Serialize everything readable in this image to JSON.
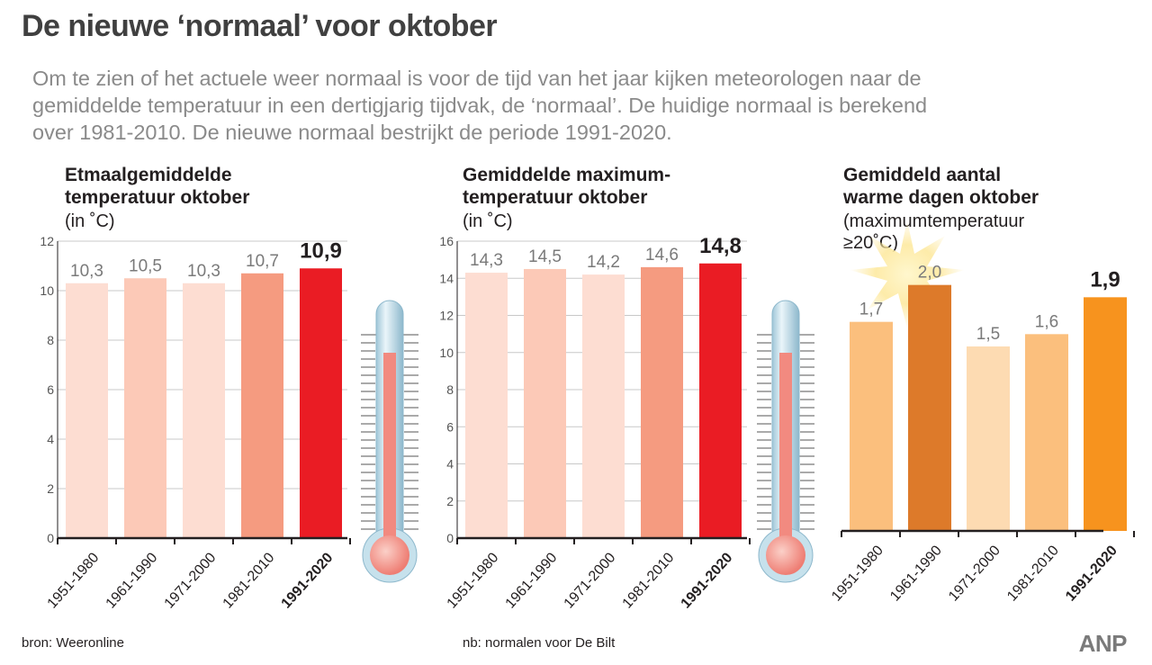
{
  "title": "De nieuwe ‘normaal’ voor oktober",
  "intro": {
    "line1": "Om te zien of het actuele weer normaal is voor de tijd van het jaar kijken meteorologen naar de",
    "line2": "gemiddelde temperatuur in een dertigjarig tijdvak, de ‘normaal’. De huidige normaal is berekend",
    "line3": "over 1981-2010. De nieuwe normaal bestrijkt de periode 1991-2020."
  },
  "chart_data": [
    {
      "type": "bar",
      "title_line1": "Etmaalgemiddelde",
      "title_line2": "temperatuur oktober",
      "unit": "(in ˚C)",
      "categories": [
        "1951-1980",
        "1961-1990",
        "1971-2000",
        "1981-2010",
        "1991-2020"
      ],
      "values": [
        10.3,
        10.5,
        10.3,
        10.7,
        10.9
      ],
      "value_labels": [
        "10,3",
        "10,5",
        "10,3",
        "10,7",
        "10,9"
      ],
      "highlight_index": 4,
      "colors": [
        "#fdddd2",
        "#fcc9b7",
        "#fdddd2",
        "#f59b80",
        "#ea1c24"
      ],
      "ylim": [
        0,
        12
      ],
      "yticks": [
        "0",
        "2",
        "4",
        "6",
        "8",
        "10",
        "12"
      ],
      "grid": false
    },
    {
      "type": "bar",
      "title_line1": "Gemiddelde maximum-",
      "title_line2": "temperatuur oktober",
      "unit": "(in ˚C)",
      "categories": [
        "1951-1980",
        "1961-1990",
        "1971-2000",
        "1981-2010",
        "1991-2020"
      ],
      "values": [
        14.3,
        14.5,
        14.2,
        14.6,
        14.8
      ],
      "value_labels": [
        "14,3",
        "14,5",
        "14,2",
        "14,6",
        "14,8"
      ],
      "highlight_index": 4,
      "colors": [
        "#fdddd2",
        "#fcc9b7",
        "#fdddd2",
        "#f59b80",
        "#ea1c24"
      ],
      "ylim": [
        0,
        16
      ],
      "yticks": [
        "0",
        "2",
        "4",
        "6",
        "8",
        "10",
        "12",
        "14",
        "16"
      ],
      "grid": false
    },
    {
      "type": "bar",
      "title_line1": "Gemiddeld aantal",
      "title_line2": "warme dagen oktober",
      "unit_line1": "(maximumtemperatuur",
      "unit_line2": "≥20˚C)",
      "categories": [
        "1951-1980",
        "1961-1990",
        "1971-2000",
        "1981-2010",
        "1991-2020"
      ],
      "values": [
        1.7,
        2.0,
        1.5,
        1.6,
        1.9
      ],
      "value_labels": [
        "1,7",
        "2,0",
        "1,5",
        "1,6",
        "1,9"
      ],
      "highlight_index": 4,
      "colors": [
        "#fbbf7d",
        "#dd7a2a",
        "#fddbb2",
        "#fbbf7d",
        "#f7931e"
      ],
      "ylim": [
        0,
        2.4
      ],
      "grid": false
    }
  ],
  "footer": {
    "source": "bron:  Weeronline",
    "note": "nb: normalen voor De Bilt",
    "logo": "ANP"
  },
  "icons": {
    "thermometer": "thermometer-icon",
    "sun": "sun-icon"
  }
}
